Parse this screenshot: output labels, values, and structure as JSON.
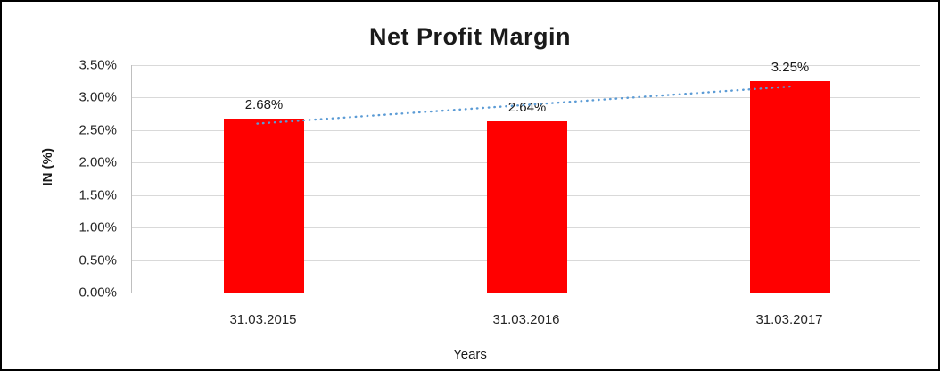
{
  "window": {
    "background": "#ffffff",
    "border_color": "#000000"
  },
  "chart_data": {
    "type": "bar",
    "title": "Net Profit Margin",
    "xlabel": "Years",
    "ylabel": "IN (%)",
    "categories": [
      "31.03.2015",
      "31.03.2016",
      "31.03.2017"
    ],
    "values": [
      2.68,
      2.64,
      3.25
    ],
    "data_labels": [
      "2.68%",
      "2.64%",
      "3.25%"
    ],
    "ylim": [
      0,
      3.5
    ],
    "ytick_step": 0.5,
    "ytick_labels": [
      "0.00%",
      "0.50%",
      "1.00%",
      "1.50%",
      "2.00%",
      "2.50%",
      "3.00%",
      "3.50%"
    ],
    "grid": true,
    "legend": "none",
    "bar_color": "#ff0000",
    "gridline_color": "#d9d9d9",
    "trendline": {
      "style": "dotted",
      "color": "#5b9bd5",
      "start_value": 2.6,
      "end_value": 3.17
    }
  }
}
